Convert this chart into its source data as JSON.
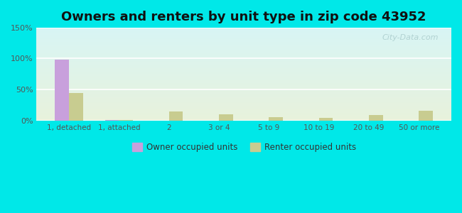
{
  "title": "Owners and renters by unit type in zip code 43952",
  "categories": [
    "1, detached",
    "1, attached",
    "2",
    "3 or 4",
    "5 to 9",
    "10 to 19",
    "20 to 49",
    "50 or more"
  ],
  "owner_values": [
    98,
    1,
    0,
    0,
    0,
    0,
    0,
    0
  ],
  "renter_values": [
    44,
    1,
    15,
    10,
    6,
    5,
    9,
    16
  ],
  "owner_color": "#c8a0dc",
  "renter_color": "#c8cc90",
  "ylim": [
    0,
    150
  ],
  "yticks": [
    0,
    50,
    100,
    150
  ],
  "ytick_labels": [
    "0%",
    "50%",
    "100%",
    "150%"
  ],
  "background_top": "#d8f5f5",
  "background_bottom": "#e8f2dc",
  "outer_background": "#00e8e8",
  "legend_owner": "Owner occupied units",
  "legend_renter": "Renter occupied units",
  "watermark": "City-Data.com",
  "bar_width": 0.28,
  "title_fontsize": 13
}
